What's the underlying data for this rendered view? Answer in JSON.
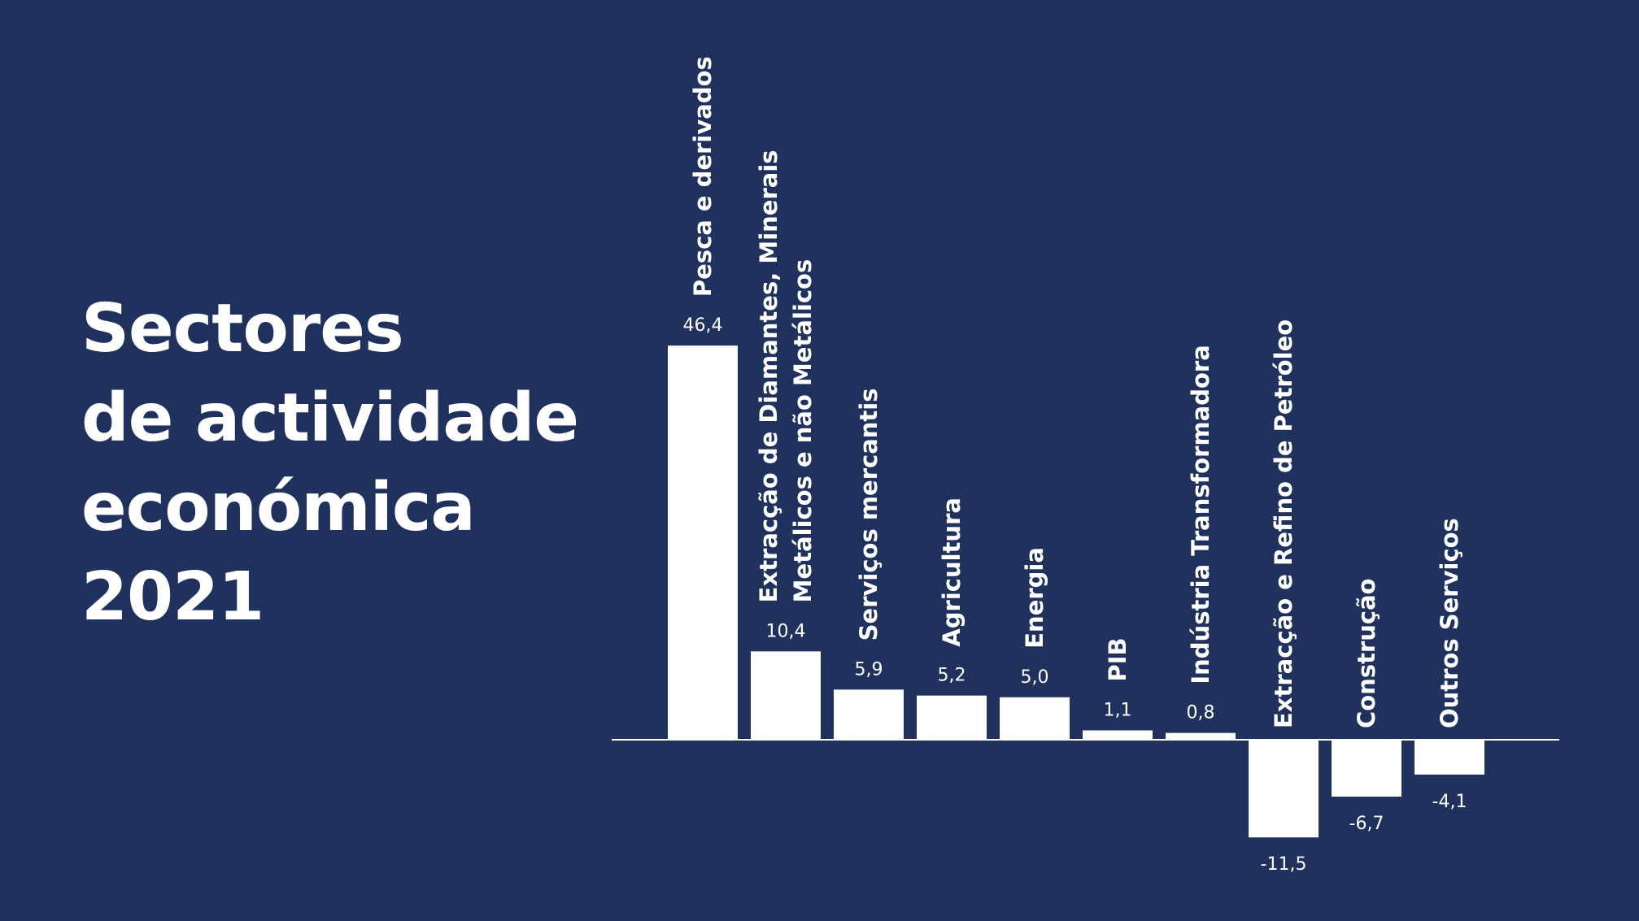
{
  "title_lines": [
    "Sectores",
    "de actividade",
    "económica",
    "2021"
  ],
  "colors": {
    "background": "#1f315c",
    "bar": "#ffffff",
    "text": "#ffffff"
  },
  "chart_data": {
    "type": "bar",
    "title": "Sectores de actividade económica 2021",
    "categories": [
      "Pesca e derivados",
      "Extracção de Diamantes, Minerais Metálicos e não Metálicos",
      "Serviços mercantis",
      "Agricultura",
      "Energia",
      "PIB",
      "Indústria Transformadora",
      "Extracção e Refino de Petróleo",
      "Construção",
      "Outros Serviços"
    ],
    "category_lines": [
      [
        "Pesca e derivados"
      ],
      [
        "Extracção de Diamantes, Minerais",
        "Metálicos e não Metálicos"
      ],
      [
        "Serviços mercantis"
      ],
      [
        "Agricultura"
      ],
      [
        "Energia"
      ],
      [
        "PIB"
      ],
      [
        "Indústria Transformadora"
      ],
      [
        "Extracção e Refino de Petróleo"
      ],
      [
        "Construção"
      ],
      [
        "Outros Serviços"
      ]
    ],
    "values": [
      46.4,
      10.4,
      5.9,
      5.2,
      5.0,
      1.1,
      0.8,
      -11.5,
      -6.7,
      -4.1
    ],
    "value_labels": [
      "46,4",
      "10,4",
      "5,9",
      "5,2",
      "5,0",
      "1,1",
      "0,8",
      "-11,5",
      "-6,7",
      "-4,1"
    ],
    "xlabel": "",
    "ylabel": "",
    "grid": false,
    "legend": "none"
  }
}
